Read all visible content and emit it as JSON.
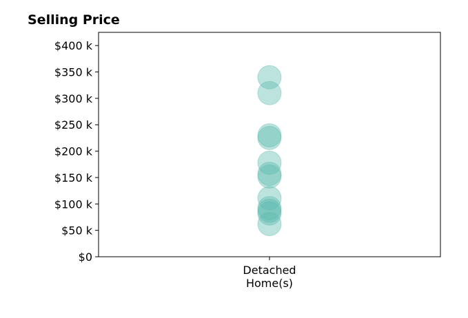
{
  "chart_data": {
    "type": "scatter",
    "title": "Selling Price",
    "xlabel": "",
    "ylabel": "",
    "categories": [
      "Detached\nHome(s)"
    ],
    "ylim": [
      0,
      425000
    ],
    "yticks": [
      0,
      50000,
      100000,
      150000,
      200000,
      250000,
      300000,
      350000,
      400000
    ],
    "ytick_labels": [
      "$0",
      "$50 k",
      "$100 k",
      "$150 k",
      "$200 k",
      "$250 k",
      "$300 k",
      "$350 k",
      "$400 k"
    ],
    "grid": false,
    "legend": "none",
    "series": [
      {
        "category": "Detached\nHome(s)",
        "values": [
          340000,
          310000,
          230000,
          225000,
          178000,
          157000,
          152000,
          111000,
          92000,
          87000,
          82000,
          62000
        ]
      }
    ],
    "marker_color": "#5ab8ad",
    "marker_opacity": 0.4
  }
}
